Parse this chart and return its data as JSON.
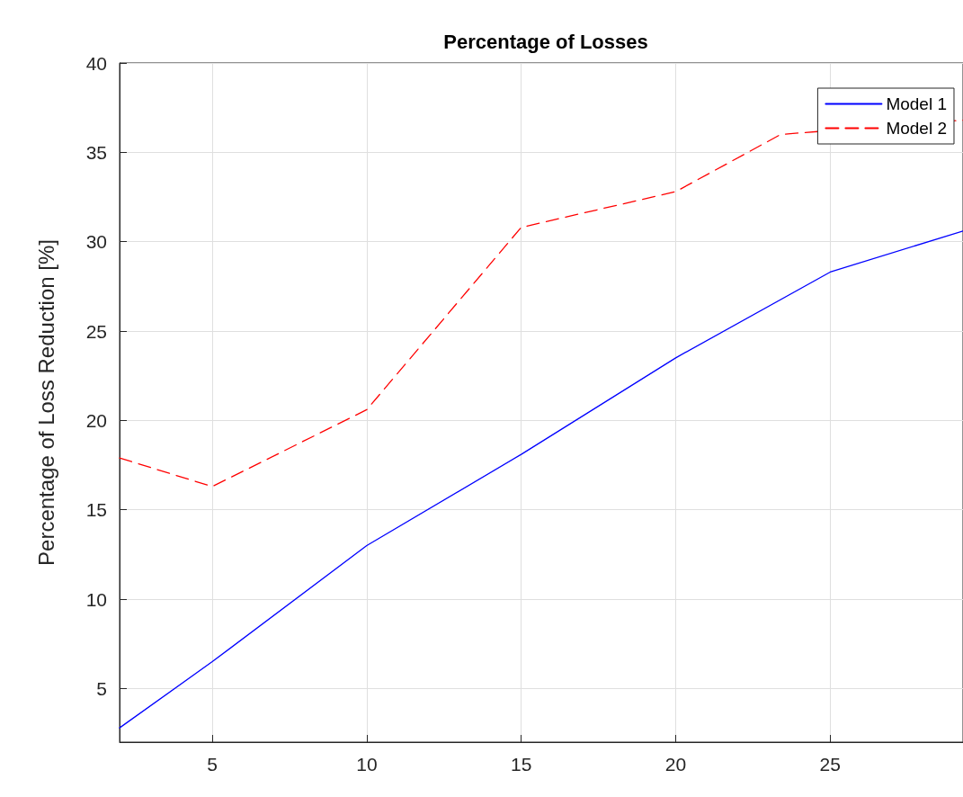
{
  "chart_data": {
    "type": "line",
    "title": "Percentage of Losses",
    "ylabel": "Percentage of Loss Reduction [%]",
    "x": [
      2,
      5,
      10,
      15,
      20,
      25,
      29.3
    ],
    "series": [
      {
        "name": "Model 1",
        "color": "#0000ff",
        "line_style": "solid",
        "values": [
          2.8,
          6.5,
          13,
          18.1,
          23.5,
          28.3,
          30.6
        ]
      },
      {
        "name": "Model 2",
        "color": "#ff0000",
        "line_style": "dashed",
        "x": [
          2,
          5,
          10,
          15,
          20,
          23.4,
          29.3
        ],
        "values": [
          17.9,
          16.3,
          20.6,
          30.8,
          32.8,
          36.0,
          36.8
        ]
      }
    ],
    "xlim": [
      2,
      29.3
    ],
    "xticks": [
      5,
      10,
      15,
      20,
      25
    ],
    "ylim": [
      2,
      40
    ],
    "yticks": [
      5,
      10,
      15,
      20,
      25,
      30,
      35,
      40
    ],
    "grid": true,
    "legend": "top right",
    "marker": "none"
  }
}
